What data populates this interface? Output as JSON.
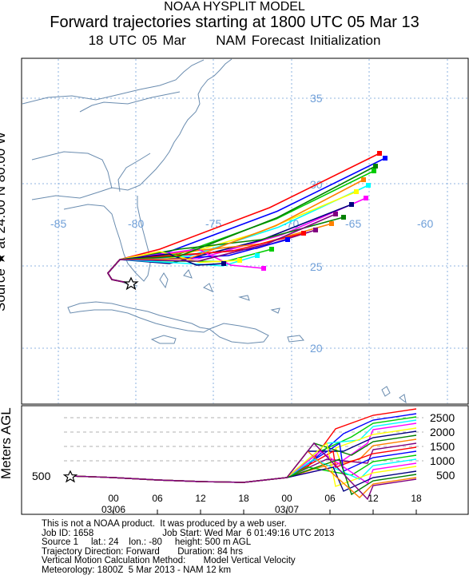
{
  "header": {
    "line1": "NOAA HYSPLIT MODEL",
    "line2": "Forward trajectories starting at 1800 UTC 05 Mar 13",
    "line3_time": "18 UTC 05 Mar",
    "line3_model": "NAM  Forecast Initialization"
  },
  "source_label": "Source ★ at  24.00 N   80.00 W",
  "map": {
    "lon_labels": [
      "-85",
      "-80",
      "-75",
      "-70",
      "-65",
      "-60"
    ],
    "lat_labels": [
      "35",
      "30",
      "25",
      "20"
    ],
    "grid_color": "#6f9fd8",
    "coast_color": "#6a8caf"
  },
  "vertical_panel": {
    "ylabel": "Meters AGL",
    "left_tick": "500",
    "right_ticks": [
      "2500",
      "2000",
      "1500",
      "1000",
      "500"
    ],
    "hour_ticks": [
      "00",
      "06",
      "12",
      "18",
      "00",
      "06",
      "12",
      "18"
    ],
    "date_ticks": [
      "03/06",
      "03/07"
    ]
  },
  "footer": {
    "disclaimer": "This is not a NOAA product.  It was produced by a web user.",
    "job_id": "Job ID: 1658",
    "job_start": "Job Start: Wed Mar  6 01:49:16 UTC 2013",
    "source_line": "Source 1     lat.: 24    lon.: -80     height: 500 m AGL",
    "direction_line": "Trajectory Direction: Forward       Duration: 84 hrs",
    "vertical_line": "Vertical Motion Calculation Method:       Model Vertical Velocity",
    "meteorology_line": "Meteorology: 1800Z  5 Mar 2013 - NAM 12 km"
  },
  "trajectory_colors": [
    "#ff0000",
    "#0000ff",
    "#00cc00",
    "#00ffff",
    "#ff00ff",
    "#ffff00",
    "#000080",
    "#008000",
    "#ff8000",
    "#800080"
  ]
}
